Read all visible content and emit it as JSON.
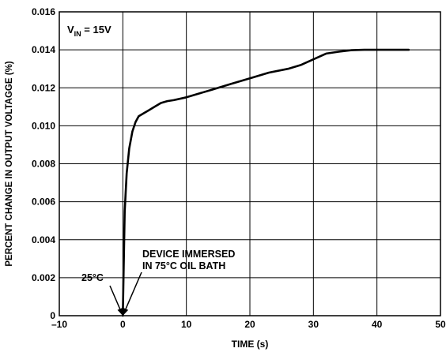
{
  "chart_data": {
    "type": "line",
    "title": "",
    "xlabel": "TIME (s)",
    "ylabel": "PERCENT CHANGE IN OUTPUT VOLTAGGE (%)",
    "xlim": [
      -10,
      50
    ],
    "ylim": [
      0,
      0.016
    ],
    "x_ticks": [
      "–10",
      "0",
      "10",
      "20",
      "30",
      "40",
      "50"
    ],
    "y_ticks": [
      "0",
      "0.002",
      "0.004",
      "0.006",
      "0.008",
      "0.010",
      "0.012",
      "0.014",
      "0.016"
    ],
    "grid": true,
    "legend": "none",
    "series": [
      {
        "x": [
          0,
          0.3,
          0.6,
          1.0,
          1.5,
          2.0,
          2.5,
          3.0,
          3.5,
          4.0,
          5.0,
          6.0,
          7.0,
          8.0,
          10.0,
          12.0,
          14.0,
          17.0,
          20.0,
          23.0,
          26.0,
          28.0,
          30.0,
          32.0,
          34.0,
          36.0,
          38.0,
          40.0,
          42.0,
          45.0
        ],
        "y": [
          0,
          0.0055,
          0.0075,
          0.0088,
          0.0097,
          0.0102,
          0.0105,
          0.0106,
          0.0107,
          0.0108,
          0.011,
          0.0112,
          0.0113,
          0.01135,
          0.0115,
          0.0117,
          0.0119,
          0.0122,
          0.0125,
          0.0128,
          0.013,
          0.0132,
          0.0135,
          0.0138,
          0.0139,
          0.01398,
          0.014,
          0.014,
          0.014,
          0.014
        ]
      }
    ],
    "annotations": {
      "vin_main": "V",
      "vin_sub": "IN",
      "vin_rest": " = 15V",
      "temp_start": "25°C",
      "immersed_line1": "DEVICE IMMERSED",
      "immersed_line2": "IN 75°C OIL BATH"
    }
  }
}
